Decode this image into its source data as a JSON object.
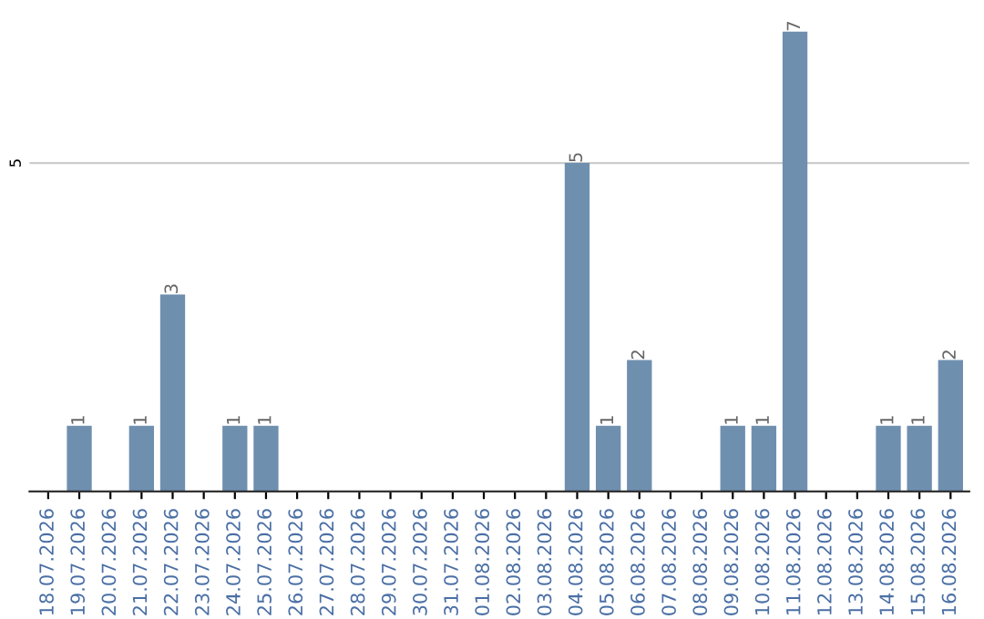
{
  "chart_data": {
    "type": "bar",
    "categories": [
      "18.07.2026",
      "19.07.2026",
      "20.07.2026",
      "21.07.2026",
      "22.07.2026",
      "23.07.2026",
      "24.07.2026",
      "25.07.2026",
      "26.07.2026",
      "27.07.2026",
      "28.07.2026",
      "29.07.2026",
      "30.07.2026",
      "31.07.2026",
      "01.08.2026",
      "02.08.2026",
      "03.08.2026",
      "04.08.2026",
      "05.08.2026",
      "06.08.2026",
      "07.08.2026",
      "08.08.2026",
      "09.08.2026",
      "10.08.2026",
      "11.08.2026",
      "12.08.2026",
      "13.08.2026",
      "14.08.2026",
      "15.08.2026",
      "16.08.2026"
    ],
    "values": [
      0,
      1,
      0,
      1,
      3,
      0,
      1,
      1,
      0,
      0,
      0,
      0,
      0,
      0,
      0,
      0,
      0,
      5,
      1,
      2,
      0,
      0,
      1,
      1,
      7,
      0,
      0,
      1,
      1,
      2
    ],
    "value_labels": [
      null,
      "1",
      null,
      "1",
      "3",
      null,
      "1",
      "1",
      null,
      null,
      null,
      null,
      null,
      null,
      null,
      null,
      null,
      "5",
      "1",
      "2",
      null,
      null,
      "1",
      "1",
      "7",
      null,
      null,
      "1",
      "1",
      "2"
    ],
    "color": "#6f8faf",
    "ref_lines": [
      {
        "axis": "y",
        "value": 5,
        "label": "5",
        "color": "#cccccc"
      }
    ]
  }
}
